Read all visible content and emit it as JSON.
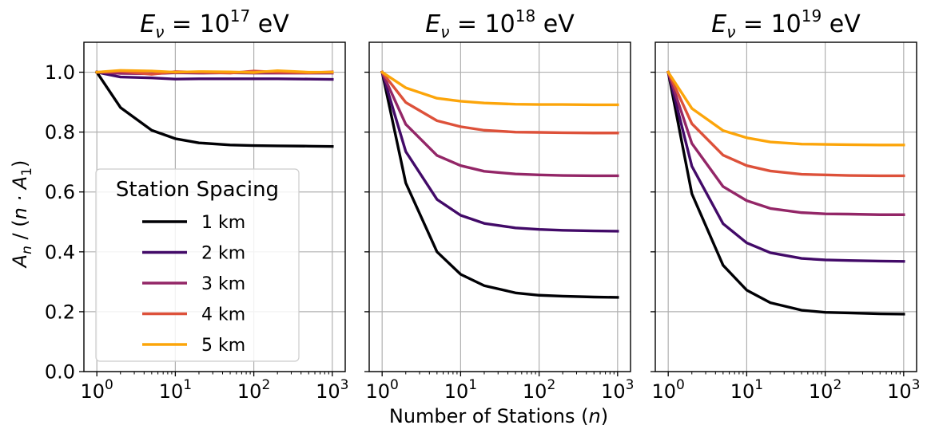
{
  "chart_data": {
    "type": "line",
    "xscale": "log",
    "xlim": [
      1,
      1000
    ],
    "ylim": [
      0.0,
      1.1
    ],
    "x": [
      1,
      2,
      5,
      10,
      20,
      50,
      100,
      200,
      500,
      1000
    ],
    "x_ticks": [
      {
        "value": 1,
        "base": "10",
        "exp": "0"
      },
      {
        "value": 10,
        "base": "10",
        "exp": "1"
      },
      {
        "value": 100,
        "base": "10",
        "exp": "2"
      },
      {
        "value": 1000,
        "base": "10",
        "exp": "3"
      }
    ],
    "y_ticks": [
      {
        "value": 0.0,
        "label": "0.0"
      },
      {
        "value": 0.2,
        "label": "0.2"
      },
      {
        "value": 0.4,
        "label": "0.4"
      },
      {
        "value": 0.6,
        "label": "0.6"
      },
      {
        "value": 0.8,
        "label": "0.8"
      },
      {
        "value": 1.0,
        "label": "1.0"
      }
    ],
    "ylabel": {
      "A": "A",
      "n": "n",
      "mid": " / (",
      "n2": "n",
      "dot": " · A",
      "one": "1",
      "close": ")"
    },
    "xlabel": {
      "pre": "Number of Stations (",
      "var": "n",
      "post": ")"
    },
    "grid": true,
    "legend": {
      "title": "Station Spacing",
      "location": "lower-left of first panel",
      "entries": [
        {
          "label": "1 km",
          "color": "#000004"
        },
        {
          "label": "2 km",
          "color": "#420a68"
        },
        {
          "label": "3 km",
          "color": "#932667"
        },
        {
          "label": "4 km",
          "color": "#dd513a"
        },
        {
          "label": "5 km",
          "color": "#fca50a"
        }
      ]
    },
    "panels": [
      {
        "title": {
          "var": "E",
          "sub": "ν",
          "eq": " = 10",
          "exp": "17",
          "unit": " eV"
        },
        "series": [
          {
            "name": "1 km",
            "values": [
              1.0,
              0.882,
              0.806,
              0.778,
              0.764,
              0.757,
              0.755,
              0.754,
              0.753,
              0.752
            ]
          },
          {
            "name": "2 km",
            "values": [
              1.0,
              0.984,
              0.981,
              0.977,
              0.978,
              0.978,
              0.978,
              0.978,
              0.977,
              0.976
            ]
          },
          {
            "name": "3 km",
            "values": [
              1.0,
              0.996,
              0.995,
              0.998,
              0.997,
              0.998,
              0.997,
              0.997,
              0.997,
              0.997
            ]
          },
          {
            "name": "4 km",
            "values": [
              1.0,
              1.003,
              0.993,
              1.002,
              1.0,
              0.997,
              1.004,
              1.0,
              0.998,
              1.001
            ]
          },
          {
            "name": "5 km",
            "values": [
              1.0,
              1.006,
              1.004,
              1.0,
              1.002,
              1.001,
              0.999,
              1.005,
              1.0,
              1.0
            ]
          }
        ]
      },
      {
        "title": {
          "var": "E",
          "sub": "ν",
          "eq": " = 10",
          "exp": "18",
          "unit": " eV"
        },
        "series": [
          {
            "name": "1 km",
            "values": [
              1.0,
              0.63,
              0.4,
              0.325,
              0.287,
              0.263,
              0.255,
              0.252,
              0.249,
              0.248
            ]
          },
          {
            "name": "2 km",
            "values": [
              1.0,
              0.735,
              0.575,
              0.522,
              0.495,
              0.48,
              0.475,
              0.472,
              0.47,
              0.469
            ]
          },
          {
            "name": "3 km",
            "values": [
              1.0,
              0.826,
              0.722,
              0.688,
              0.669,
              0.66,
              0.657,
              0.655,
              0.654,
              0.654
            ]
          },
          {
            "name": "4 km",
            "values": [
              1.0,
              0.899,
              0.838,
              0.818,
              0.806,
              0.8,
              0.799,
              0.798,
              0.797,
              0.797
            ]
          },
          {
            "name": "5 km",
            "values": [
              1.0,
              0.948,
              0.913,
              0.903,
              0.897,
              0.893,
              0.892,
              0.892,
              0.891,
              0.891
            ]
          }
        ]
      },
      {
        "title": {
          "var": "E",
          "sub": "ν",
          "eq": " = 10",
          "exp": "19",
          "unit": " eV"
        },
        "series": [
          {
            "name": "1 km",
            "values": [
              1.0,
              0.594,
              0.355,
              0.272,
              0.23,
              0.205,
              0.198,
              0.196,
              0.193,
              0.192
            ]
          },
          {
            "name": "2 km",
            "values": [
              1.0,
              0.686,
              0.494,
              0.43,
              0.397,
              0.378,
              0.373,
              0.371,
              0.369,
              0.368
            ]
          },
          {
            "name": "3 km",
            "values": [
              1.0,
              0.762,
              0.618,
              0.571,
              0.545,
              0.531,
              0.527,
              0.526,
              0.524,
              0.524
            ]
          },
          {
            "name": "4 km",
            "values": [
              1.0,
              0.828,
              0.723,
              0.688,
              0.67,
              0.659,
              0.657,
              0.655,
              0.654,
              0.654
            ]
          },
          {
            "name": "5 km",
            "values": [
              1.0,
              0.879,
              0.805,
              0.781,
              0.767,
              0.76,
              0.759,
              0.758,
              0.757,
              0.757
            ]
          }
        ]
      }
    ]
  }
}
